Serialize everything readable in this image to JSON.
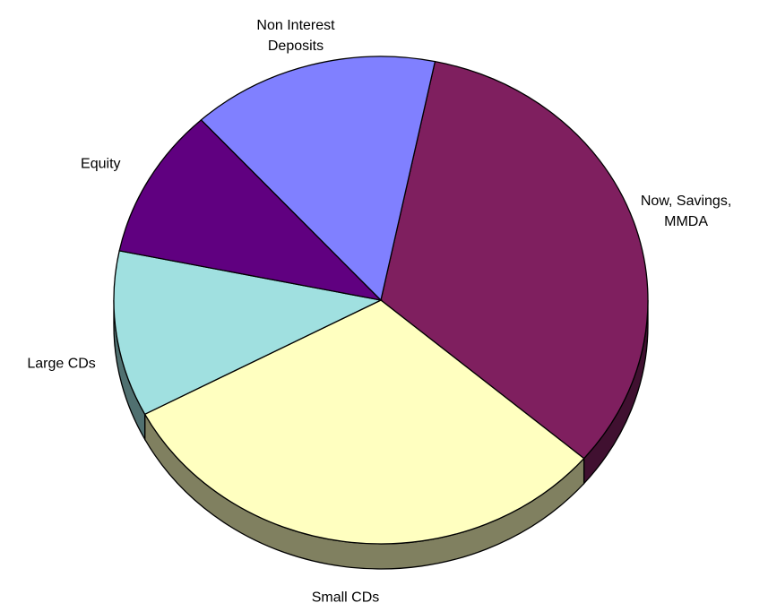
{
  "chart_data": {
    "type": "pie",
    "categories": [
      "Now, Savings, MMDA",
      "Small CDs",
      "Large CDs",
      "Equity",
      "Non Interest Deposits"
    ],
    "values": [
      33,
      31,
      11,
      10,
      15
    ],
    "colors": [
      "#7f1f5f",
      "#ffffc0",
      "#a0e0e0",
      "#600080",
      "#8080ff"
    ]
  }
}
